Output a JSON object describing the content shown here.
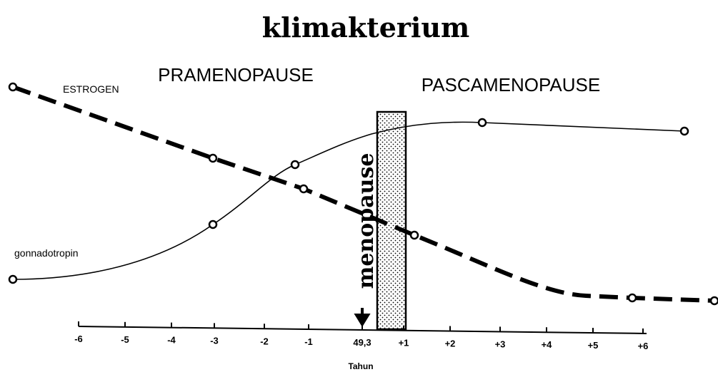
{
  "title": "klimakterium",
  "phases": [
    "PRAMENOPAUSE",
    "PASCAMENOPAUSE"
  ],
  "series_labels": [
    "ESTROGEN",
    "gonnadotropin"
  ],
  "marker": "menopause",
  "axis": {
    "title": "Tahun",
    "ticks": [
      "-6",
      "-5",
      "-4",
      "-3",
      "-2",
      "-1",
      "49,3",
      "+1",
      "+2",
      "+3",
      "+4",
      "+5",
      "+6"
    ]
  }
}
